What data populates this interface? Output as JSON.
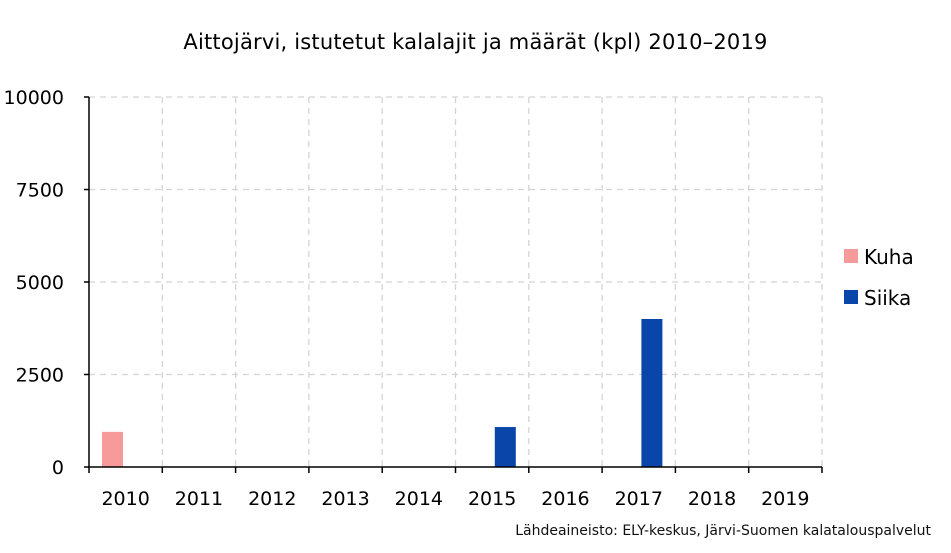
{
  "chart_data": {
    "type": "bar",
    "title": "Aittojärvi, istutetut kalalajit ja määrät (kpl) 2010–2019",
    "categories": [
      "2010",
      "2011",
      "2012",
      "2013",
      "2014",
      "2015",
      "2016",
      "2017",
      "2018",
      "2019"
    ],
    "series": [
      {
        "name": "Kuha",
        "color": "#f79a9a",
        "values": [
          950,
          0,
          0,
          0,
          0,
          0,
          0,
          0,
          0,
          0
        ]
      },
      {
        "name": "Siika",
        "color": "#0a45a9",
        "values": [
          0,
          0,
          0,
          0,
          0,
          1080,
          0,
          4000,
          0,
          0
        ]
      }
    ],
    "ylim": [
      0,
      10000
    ],
    "yticks": [
      "0",
      "2500",
      "5000",
      "7500",
      "10000"
    ],
    "ytick_values": [
      0,
      2500,
      5000,
      7500,
      10000
    ],
    "xlabel": "",
    "ylabel": "",
    "grid": true,
    "legend": "right"
  },
  "source": "Lähdeaineisto: ELY-keskus, Järvi-Suomen kalatalouspalvelut"
}
